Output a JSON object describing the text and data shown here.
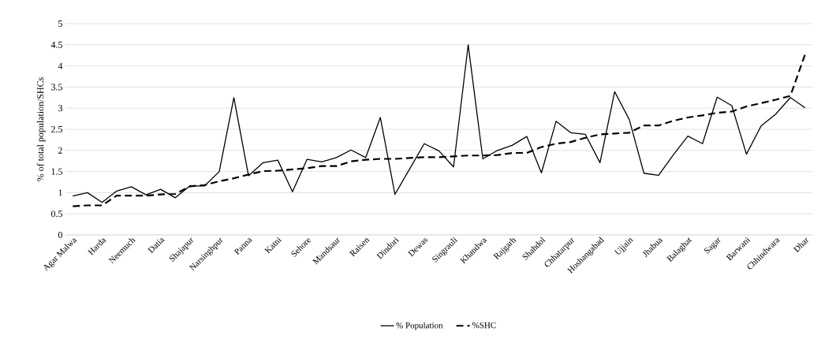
{
  "chart_data": {
    "type": "line",
    "ylabel": "% of total population/SHCs",
    "categories": [
      "Agar Malwa",
      null,
      "Harda",
      null,
      "Neemuch",
      null,
      "Datia",
      null,
      "Shajapur",
      null,
      "Narsinghpur",
      null,
      "Panna",
      null,
      "Katni",
      null,
      "Sehore",
      null,
      "Mandsaur",
      null,
      "Raisen",
      null,
      "Dindori",
      null,
      "Dewas",
      null,
      "Singrauli",
      null,
      "Khandwa",
      null,
      "Rajgarh",
      null,
      "Shahdol",
      null,
      "Chhatarpur",
      null,
      "Hoshangabad",
      null,
      "Ujjain",
      null,
      "Jhabua",
      null,
      "Balaghat",
      null,
      "Sagar",
      null,
      "Barwani",
      null,
      "Chhindwara",
      null,
      "Dhar"
    ],
    "series": [
      {
        "name": "% Population",
        "color": "#000000",
        "line_style": "solid",
        "values": [
          0.92,
          1.0,
          0.77,
          1.04,
          1.14,
          0.95,
          1.08,
          0.88,
          1.16,
          1.16,
          1.5,
          3.25,
          1.4,
          1.71,
          1.77,
          1.02,
          1.79,
          1.73,
          1.83,
          2.01,
          1.83,
          2.78,
          0.96,
          1.56,
          2.16,
          1.99,
          1.61,
          4.5,
          1.8,
          2.0,
          2.12,
          2.33,
          1.47,
          2.69,
          2.42,
          2.38,
          1.71,
          3.39,
          2.73,
          1.46,
          1.41,
          1.89,
          2.34,
          2.16,
          3.26,
          3.06,
          1.91,
          2.58,
          2.86,
          3.25,
          3.01
        ]
      },
      {
        "name": "%SHC",
        "color": "#000000",
        "line_style": "dashed",
        "values": [
          0.68,
          0.7,
          0.7,
          0.93,
          0.93,
          0.93,
          0.96,
          0.97,
          1.15,
          1.18,
          1.27,
          1.34,
          1.43,
          1.51,
          1.52,
          1.55,
          1.58,
          1.63,
          1.63,
          1.74,
          1.78,
          1.8,
          1.8,
          1.82,
          1.84,
          1.84,
          1.86,
          1.88,
          1.88,
          1.89,
          1.94,
          1.94,
          2.08,
          2.16,
          2.2,
          2.3,
          2.38,
          2.4,
          2.42,
          2.59,
          2.59,
          2.7,
          2.78,
          2.83,
          2.89,
          2.92,
          3.04,
          3.12,
          3.2,
          3.29,
          4.27
        ]
      }
    ],
    "ylim": [
      0,
      5
    ],
    "yticks": [
      0,
      0.5,
      1,
      1.5,
      2,
      2.5,
      3,
      3.5,
      4,
      4.5,
      5
    ],
    "grid": "y",
    "legend": "bottom",
    "marker": "none"
  }
}
